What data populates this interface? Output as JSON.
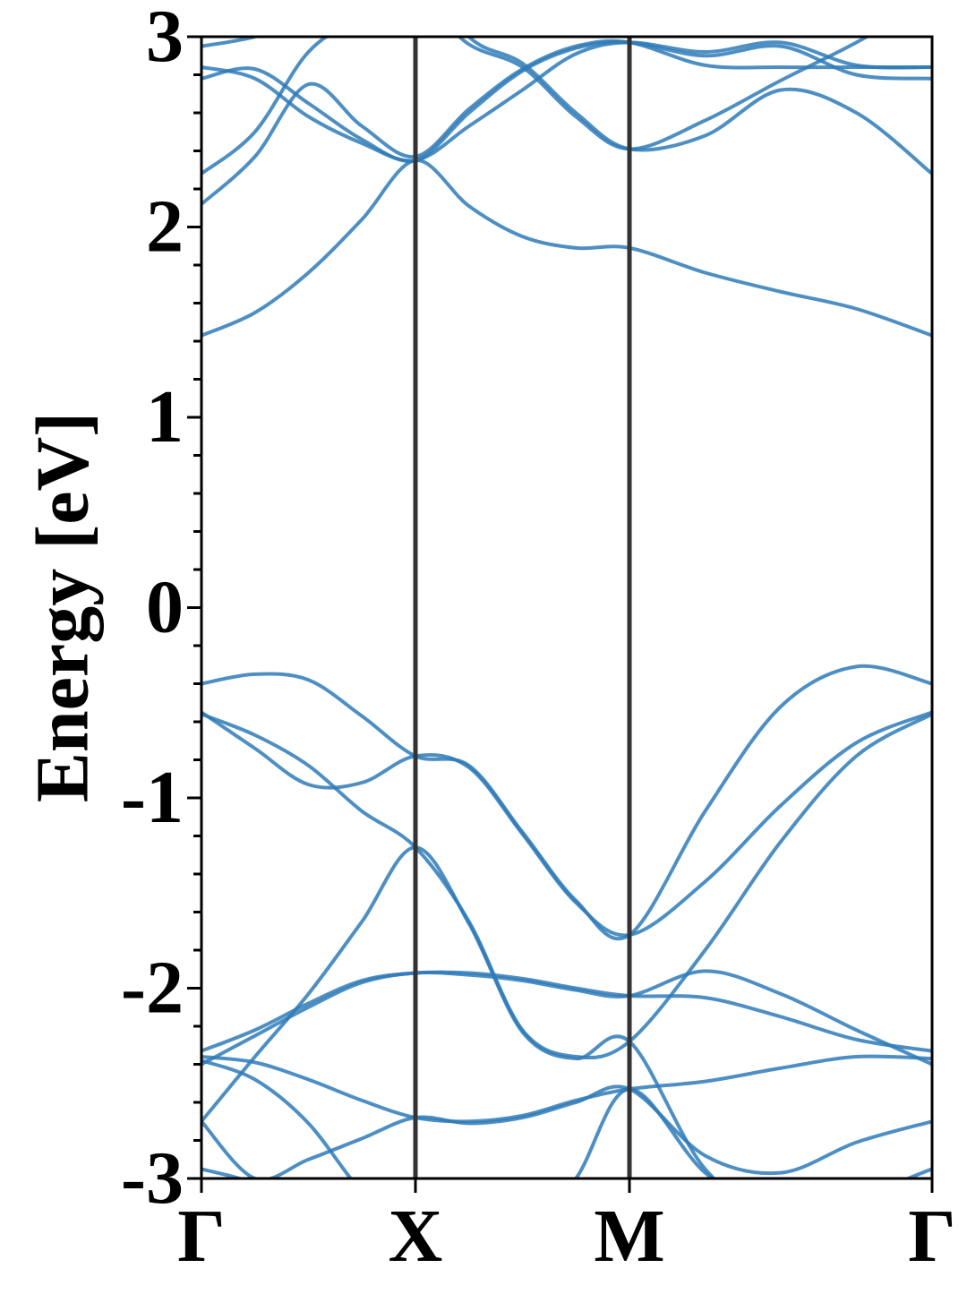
{
  "chart_data": {
    "type": "line",
    "y_label": "Energy [eV]",
    "color": "#2f7bb8",
    "xlim": [
      0,
      3.4142
    ],
    "xticks": [
      {
        "value": 0,
        "label": "Γ"
      },
      {
        "value": 1,
        "label": "X"
      },
      {
        "value": 2,
        "label": "M"
      },
      {
        "value": 3.4142,
        "label": "Γ"
      }
    ],
    "ylim": [
      -3,
      3
    ],
    "yticks": [
      -3,
      -2,
      -1,
      0,
      1,
      2,
      3
    ],
    "yminorticks": [
      -2.8,
      -2.6,
      -2.4,
      -2.2,
      -1.8,
      -1.6,
      -1.4,
      -1.2,
      -0.8,
      -0.6,
      -0.4,
      -0.2,
      0.2,
      0.4,
      0.6,
      0.8,
      1.2,
      1.4,
      1.6,
      1.8,
      2.2,
      2.4,
      2.6,
      2.8
    ],
    "x": [
      0,
      0.25,
      0.5,
      0.75,
      1,
      1.25,
      1.5,
      1.75,
      2,
      2.3536,
      2.7071,
      3.0607,
      3.4142
    ],
    "series": [
      {
        "values": [
          -0.4,
          -0.35,
          -0.38,
          -0.57,
          -0.78,
          -0.83,
          -1.18,
          -1.54,
          -1.72,
          -1.07,
          -0.52,
          -0.31,
          -0.4
        ]
      },
      {
        "values": [
          -0.55,
          -0.74,
          -0.93,
          -0.92,
          -0.78,
          -0.84,
          -1.19,
          -1.55,
          -1.72,
          -1.44,
          -1.04,
          -0.71,
          -0.55
        ]
      },
      {
        "values": [
          -0.56,
          -0.67,
          -0.83,
          -1.07,
          -1.26,
          -1.65,
          -2.22,
          -2.36,
          -2.28,
          -1.8,
          -1.23,
          -0.78,
          -0.56
        ]
      },
      {
        "values": [
          -2.33,
          -2.22,
          -2.08,
          -1.96,
          -1.92,
          -1.92,
          -1.95,
          -2.0,
          -2.04,
          -2.05,
          -2.15,
          -2.27,
          -2.33
        ]
      },
      {
        "values": [
          -2.4,
          -2.25,
          -2.1,
          -1.97,
          -1.92,
          -1.93,
          -1.96,
          -2.01,
          -2.04,
          -1.91,
          -2.03,
          -2.22,
          -2.4
        ]
      },
      {
        "values": [
          -2.7,
          -2.36,
          -2.03,
          -1.65,
          -1.26,
          -1.66,
          -2.23,
          -2.37,
          -2.28,
          -2.95,
          -3.2,
          -3.1,
          -2.95
        ]
      },
      {
        "values": [
          -2.36,
          -2.39,
          -2.48,
          -2.59,
          -2.68,
          -2.7,
          -2.67,
          -2.59,
          -2.53,
          -2.49,
          -2.42,
          -2.36,
          -2.37
        ]
      },
      {
        "values": [
          -2.38,
          -2.48,
          -2.71,
          -3.07,
          -3.3,
          -3.4,
          -3.3,
          -3.0,
          -2.53,
          -2.97,
          -3.2,
          -3.2,
          -3.2
        ]
      },
      {
        "values": [
          -2.7,
          -3.0,
          -2.9,
          -2.79,
          -2.68,
          -2.71,
          -2.68,
          -2.6,
          -2.53,
          -2.88,
          -2.97,
          -2.81,
          -2.7
        ]
      },
      {
        "values": [
          -2.95,
          -3.03,
          -3.2,
          -3.4,
          -3.5,
          null,
          null,
          null,
          null,
          null,
          null,
          null,
          null
        ]
      },
      {
        "values": [
          1.43,
          1.55,
          1.76,
          2.04,
          2.35,
          2.11,
          1.95,
          1.89,
          1.89,
          1.76,
          1.66,
          1.57,
          1.43
        ]
      },
      {
        "values": [
          2.12,
          2.37,
          2.75,
          2.53,
          2.37,
          2.62,
          2.83,
          2.95,
          2.97,
          2.85,
          2.84,
          2.84,
          2.84
        ]
      },
      {
        "values": [
          2.28,
          2.5,
          2.92,
          3.1,
          3.2,
          2.96,
          2.84,
          2.58,
          2.41,
          2.56,
          2.77,
          2.97,
          3.2
        ]
      },
      {
        "values": [
          2.78,
          2.83,
          2.65,
          2.46,
          2.35,
          2.6,
          2.82,
          2.94,
          2.97,
          2.9,
          2.95,
          2.8,
          2.78
        ]
      },
      {
        "values": [
          2.84,
          2.78,
          2.58,
          2.44,
          2.35,
          2.53,
          2.72,
          2.91,
          2.97,
          2.92,
          2.97,
          2.85,
          2.84
        ]
      },
      {
        "values": [
          2.95,
          3.0,
          3.1,
          3.3,
          3.4,
          3.0,
          2.86,
          2.6,
          2.41,
          2.48,
          2.72,
          2.6,
          2.28
        ]
      }
    ]
  }
}
